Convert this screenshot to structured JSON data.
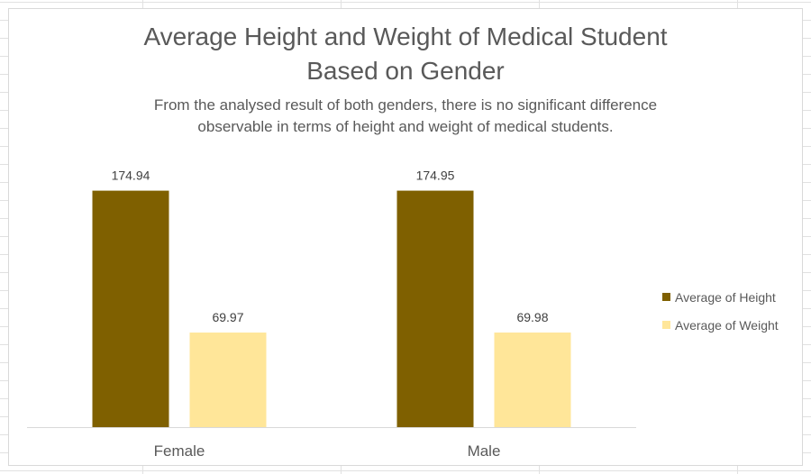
{
  "chart_data": {
    "type": "bar",
    "title_line1": "Average Height and Weight of Medical Student",
    "title_line2": "Based on Gender",
    "subtitle_line1": "From the analysed result of both genders, there is no significant difference",
    "subtitle_line2": "observable in terms of height and weight of medical students.",
    "categories": [
      "Female",
      "Male"
    ],
    "series": [
      {
        "name": "Average of Height",
        "color": "#7f6000",
        "values": [
          174.94,
          174.95
        ]
      },
      {
        "name": "Average of Weight",
        "color": "#ffe699",
        "values": [
          69.97,
          69.98
        ]
      }
    ],
    "ylim": [
      0,
      200
    ],
    "grid": false,
    "legend_position": "right"
  }
}
